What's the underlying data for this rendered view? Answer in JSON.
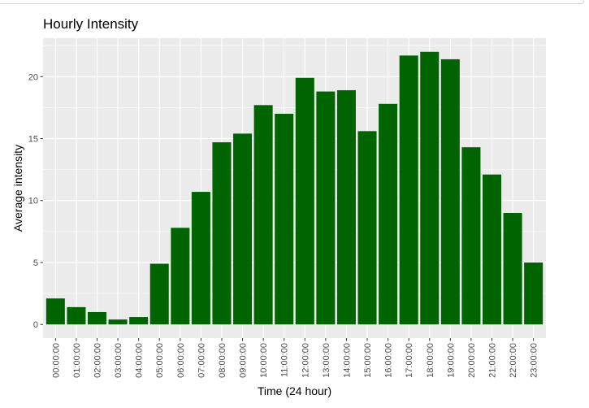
{
  "chart_data": {
    "type": "bar",
    "title": "Hourly Intensity",
    "xlabel": "Time (24 hour)",
    "ylabel": "Average intensity",
    "categories": [
      "00:00:00",
      "01:00:00",
      "02:00:00",
      "03:00:00",
      "04:00:00",
      "05:00:00",
      "06:00:00",
      "07:00:00",
      "08:00:00",
      "09:00:00",
      "10:00:00",
      "11:00:00",
      "12:00:00",
      "13:00:00",
      "14:00:00",
      "15:00:00",
      "16:00:00",
      "17:00:00",
      "18:00:00",
      "19:00:00",
      "20:00:00",
      "21:00:00",
      "22:00:00",
      "23:00:00"
    ],
    "values": [
      2.1,
      1.4,
      1.0,
      0.4,
      0.6,
      4.9,
      7.8,
      10.7,
      14.7,
      15.4,
      17.7,
      17.0,
      19.9,
      18.8,
      18.9,
      15.6,
      17.8,
      21.7,
      22.0,
      21.4,
      14.3,
      12.1,
      9.0,
      5.0
    ],
    "yticks": [
      0,
      5,
      10,
      15,
      20
    ],
    "ylim": [
      -1.1,
      23.1
    ],
    "grid": true,
    "bar_color": "#006400",
    "panel_color": "#ebebeb",
    "grid_color": "#ffffff"
  }
}
